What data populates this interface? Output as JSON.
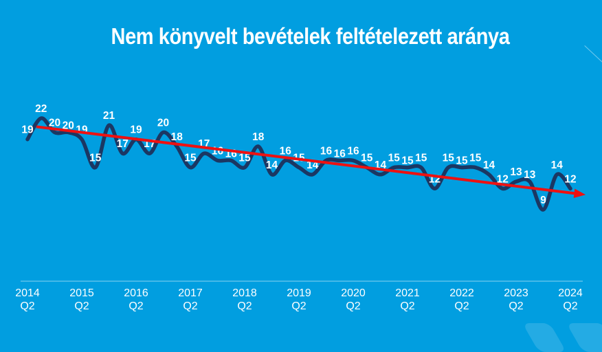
{
  "slide": {
    "background_color": "#019EE0"
  },
  "chart_data": {
    "type": "line",
    "title": "Nem könyvelt bevételek feltételezett aránya",
    "x": [
      "2014 Q2",
      "2014 Q3",
      "2014 Q4",
      "2015 Q1",
      "2015 Q2",
      "2015 Q3",
      "2015 Q4",
      "2016 Q1",
      "2016 Q2",
      "2016 Q3",
      "2016 Q4",
      "2017 Q1",
      "2017 Q2",
      "2017 Q3",
      "2017 Q4",
      "2018 Q1",
      "2018 Q2",
      "2018 Q3",
      "2018 Q4",
      "2019 Q1",
      "2019 Q2",
      "2019 Q3",
      "2019 Q4",
      "2020 Q1",
      "2020 Q2",
      "2020 Q3",
      "2020 Q4",
      "2021 Q1",
      "2021 Q2",
      "2021 Q3",
      "2021 Q4",
      "2022 Q1",
      "2022 Q2",
      "2022 Q3",
      "2022 Q4",
      "2023 Q1",
      "2023 Q2",
      "2023 Q3",
      "2023 Q4",
      "2024 Q1",
      "2024 Q2"
    ],
    "series": [
      {
        "values": [
          19,
          22,
          20,
          20,
          19,
          15,
          21,
          17,
          19,
          17,
          20,
          18,
          15,
          17,
          16,
          16,
          15,
          18,
          14,
          16,
          15,
          14,
          16,
          16,
          16,
          15,
          14,
          15,
          15,
          15,
          12,
          15,
          15,
          15,
          14,
          12,
          13,
          13,
          9,
          14,
          12
        ],
        "color": "#1B3763"
      }
    ],
    "data_label_color": "#FFFFFF",
    "x_tick_indices": [
      0,
      4,
      8,
      12,
      16,
      20,
      24,
      28,
      32,
      36,
      40
    ],
    "x_tick_labels": [
      {
        "year": "2014",
        "quarter": "Q2"
      },
      {
        "year": "2015",
        "quarter": "Q2"
      },
      {
        "year": "2016",
        "quarter": "Q2"
      },
      {
        "year": "2017",
        "quarter": "Q2"
      },
      {
        "year": "2018",
        "quarter": "Q2"
      },
      {
        "year": "2019",
        "quarter": "Q2"
      },
      {
        "year": "2020",
        "quarter": "Q2"
      },
      {
        "year": "2021",
        "quarter": "Q2"
      },
      {
        "year": "2022",
        "quarter": "Q2"
      },
      {
        "year": "2023",
        "quarter": "Q2"
      },
      {
        "year": "2024",
        "quarter": "Q2"
      }
    ],
    "axis_color": "#FFFFFF",
    "grid": false,
    "legend": null,
    "trendline": {
      "color": "#EE1111",
      "x1_index": 0.66,
      "value1": 20.8,
      "x2_index": 40.4,
      "value2": 11.3
    }
  }
}
